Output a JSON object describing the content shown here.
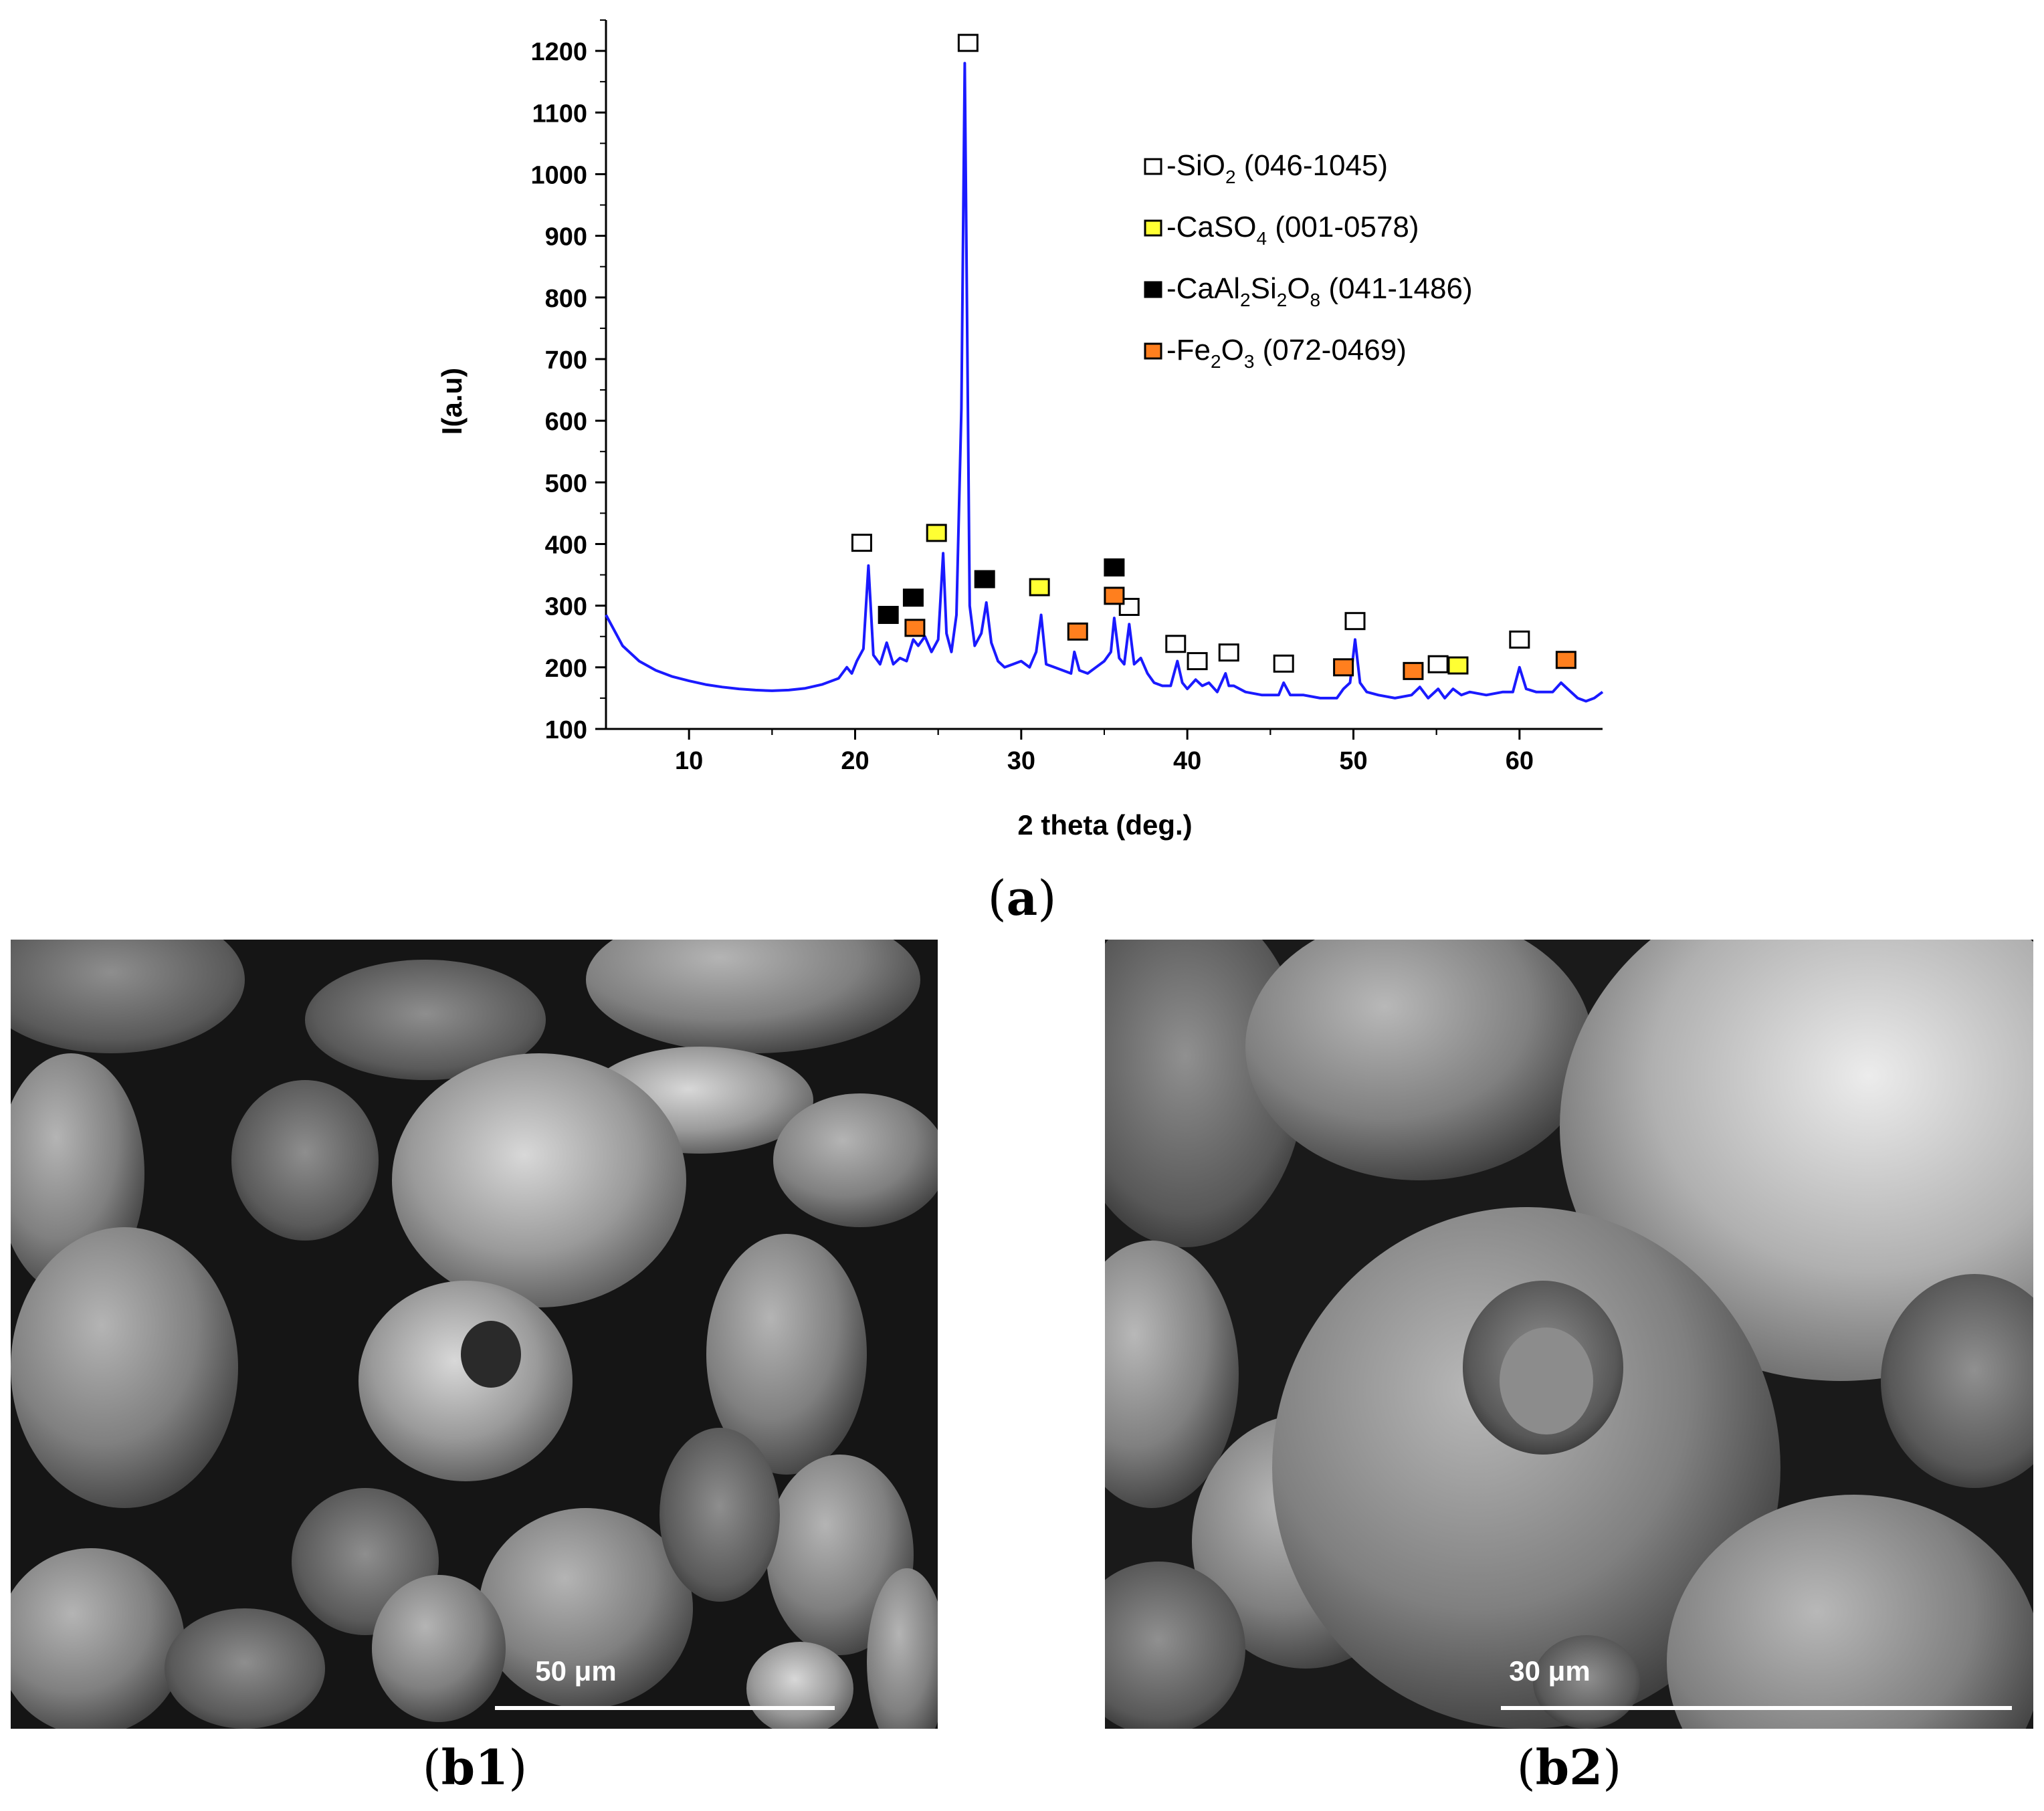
{
  "chart_data": {
    "type": "line",
    "xlabel": "2 theta (deg.)",
    "ylabel": "I(a.u)",
    "xlim": [
      5,
      65
    ],
    "ylim": [
      100,
      1250
    ],
    "x_ticks": [
      10,
      20,
      30,
      40,
      50,
      60
    ],
    "y_ticks": [
      100,
      200,
      300,
      400,
      500,
      600,
      700,
      800,
      900,
      1000,
      1100,
      1200
    ],
    "grid": false,
    "legend_position": "top-right",
    "line_color": "#1a1aff",
    "series": [
      {
        "x": [
          5,
          6,
          7,
          8,
          9,
          10,
          11,
          12,
          13,
          14,
          15,
          16,
          17,
          18,
          19,
          19.5,
          19.8,
          20.1,
          20.5,
          20.8,
          21.1,
          21.5,
          21.9,
          22.3,
          22.7,
          23.1,
          23.5,
          23.8,
          24.2,
          24.6,
          25.0,
          25.3,
          25.5,
          25.8,
          26.1,
          26.4,
          26.6,
          26.9,
          27.2,
          27.6,
          27.9,
          28.2,
          28.6,
          29.0,
          29.5,
          30.0,
          30.5,
          30.9,
          31.2,
          31.5,
          32.0,
          32.5,
          33.0,
          33.2,
          33.5,
          34.0,
          34.5,
          35.0,
          35.4,
          35.6,
          35.9,
          36.2,
          36.5,
          36.8,
          37.2,
          37.6,
          38.0,
          38.5,
          39.0,
          39.4,
          39.7,
          40.0,
          40.5,
          40.9,
          41.3,
          41.8,
          42.3,
          42.5,
          42.8,
          43.5,
          44.5,
          45.5,
          45.8,
          46.2,
          47.0,
          48.0,
          49.0,
          49.4,
          49.8,
          50.1,
          50.4,
          50.8,
          51.5,
          52.5,
          53.5,
          54.0,
          54.5,
          55.1,
          55.5,
          56.0,
          56.5,
          57.0,
          58.0,
          59.0,
          59.6,
          60.0,
          60.4,
          61.0,
          62.0,
          62.5,
          62.9,
          63.5,
          64.0,
          64.5,
          65.0
        ],
        "y": [
          285,
          235,
          210,
          195,
          185,
          178,
          172,
          168,
          165,
          163,
          162,
          163,
          166,
          172,
          182,
          200,
          190,
          210,
          230,
          365,
          220,
          205,
          240,
          205,
          215,
          210,
          245,
          235,
          250,
          225,
          245,
          385,
          255,
          225,
          285,
          620,
          1180,
          300,
          235,
          255,
          305,
          240,
          210,
          200,
          205,
          210,
          200,
          225,
          285,
          205,
          200,
          195,
          190,
          225,
          195,
          190,
          200,
          210,
          225,
          280,
          215,
          205,
          270,
          205,
          215,
          190,
          175,
          170,
          170,
          210,
          175,
          165,
          180,
          170,
          175,
          160,
          190,
          170,
          170,
          160,
          155,
          155,
          175,
          155,
          155,
          150,
          150,
          165,
          175,
          245,
          175,
          160,
          155,
          150,
          155,
          168,
          150,
          165,
          150,
          165,
          155,
          160,
          155,
          160,
          160,
          200,
          165,
          160,
          160,
          175,
          165,
          150,
          145,
          150,
          160
        ]
      }
    ],
    "legend": [
      {
        "marker": "open-square",
        "color": "#ffffff",
        "base": "-SiO",
        "sub1": "2",
        "mid": "",
        "sub2": "",
        "tail": " (046-1045)"
      },
      {
        "marker": "yellow-square",
        "color": "#ffff33",
        "base": "-CaSO",
        "sub1": "4",
        "mid": "",
        "sub2": "",
        "tail": " (001-0578)"
      },
      {
        "marker": "black-square",
        "color": "#000000",
        "base": "-CaAl",
        "sub1": "2",
        "mid": "Si",
        "sub2": "2",
        "mid2": "O",
        "sub3": "8",
        "tail": " (041-1486)"
      },
      {
        "marker": "orange-square",
        "color": "#ff7f1e",
        "base": "-Fe",
        "sub1": "2",
        "mid": "O",
        "sub2": "3",
        "tail": " (072-0469)"
      }
    ],
    "markers": [
      {
        "x": 20.4,
        "y": 402,
        "phase": "SiO2"
      },
      {
        "x": 26.8,
        "y": 1213,
        "phase": "SiO2"
      },
      {
        "x": 36.5,
        "y": 298,
        "phase": "SiO2"
      },
      {
        "x": 39.3,
        "y": 238,
        "phase": "SiO2"
      },
      {
        "x": 40.6,
        "y": 210,
        "phase": "SiO2"
      },
      {
        "x": 42.5,
        "y": 224,
        "phase": "SiO2"
      },
      {
        "x": 45.8,
        "y": 206,
        "phase": "SiO2"
      },
      {
        "x": 50.1,
        "y": 275,
        "phase": "SiO2"
      },
      {
        "x": 55.1,
        "y": 205,
        "phase": "SiO2"
      },
      {
        "x": 60.0,
        "y": 245,
        "phase": "SiO2"
      },
      {
        "x": 24.9,
        "y": 418,
        "phase": "CaSO4"
      },
      {
        "x": 31.1,
        "y": 330,
        "phase": "CaSO4"
      },
      {
        "x": 56.3,
        "y": 203,
        "phase": "CaSO4"
      },
      {
        "x": 22.0,
        "y": 285,
        "phase": "CaAl2Si2O8"
      },
      {
        "x": 23.5,
        "y": 313,
        "phase": "CaAl2Si2O8"
      },
      {
        "x": 27.8,
        "y": 343,
        "phase": "CaAl2Si2O8"
      },
      {
        "x": 35.6,
        "y": 362,
        "phase": "CaAl2Si2O8"
      },
      {
        "x": 23.6,
        "y": 264,
        "phase": "Fe2O3"
      },
      {
        "x": 33.4,
        "y": 258,
        "phase": "Fe2O3"
      },
      {
        "x": 35.6,
        "y": 316,
        "phase": "Fe2O3"
      },
      {
        "x": 49.4,
        "y": 200,
        "phase": "Fe2O3"
      },
      {
        "x": 53.6,
        "y": 194,
        "phase": "Fe2O3"
      },
      {
        "x": 62.8,
        "y": 212,
        "phase": "Fe2O3"
      }
    ]
  },
  "captions": {
    "a_open": "(",
    "a_letter": "a",
    "a_close": ")",
    "b1_open": "(",
    "b1_letter": "b1",
    "b1_close": ")",
    "b2_open": "(",
    "b2_letter": "b2",
    "b2_close": ")"
  },
  "sem": {
    "b1_scale_label": "50 μm",
    "b2_scale_label": "30 μm"
  }
}
